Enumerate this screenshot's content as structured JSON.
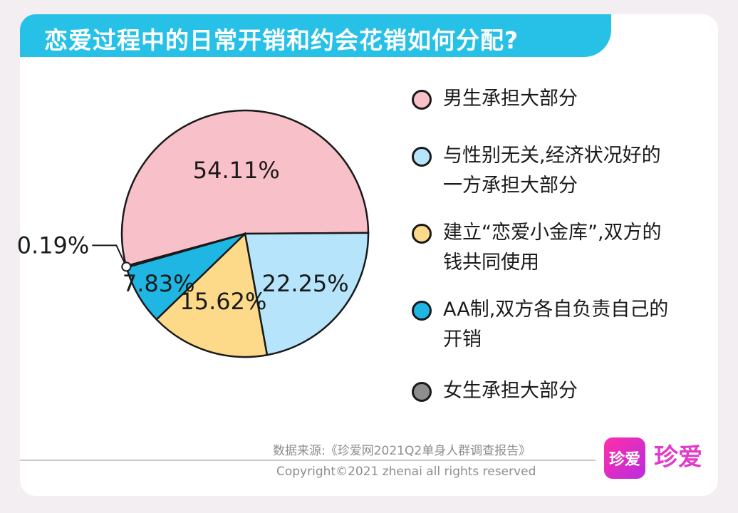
{
  "title": "恋爱过程中的日常开销和约会花销如何分配?",
  "chart_data": {
    "type": "pie",
    "slices": [
      {
        "label": "男生承担大部分",
        "value": 54.11,
        "display": "54.11%",
        "color": "#f8c0c8"
      },
      {
        "label": "与性别无关,经济状况好的一方承担大部分",
        "value": 22.25,
        "display": "22.25%",
        "color": "#b5e4fb"
      },
      {
        "label": "建立“恋爱小金库”,双方的钱共同使用",
        "value": 15.62,
        "display": "15.62%",
        "color": "#fcda8a"
      },
      {
        "label": "AA制,双方各自负责自己的开销",
        "value": 7.83,
        "display": "7.83%",
        "color": "#1fb6e3"
      },
      {
        "label": "女生承担大部分",
        "value": 0.19,
        "display": "0.19%",
        "color": "#8e8e8e"
      }
    ]
  },
  "legend": {
    "items": [
      {
        "text": "男生承担大部分",
        "color": "#f8c0c8"
      },
      {
        "text": "与性别无关,经济状况好的一方承担大部分",
        "color": "#b5e4fb"
      },
      {
        "text": "建立“恋爱小金库”,双方的钱共同使用",
        "color": "#fcda8a"
      },
      {
        "text": "AA制,双方各自负责自己的开销",
        "color": "#1fb6e3"
      },
      {
        "text": "女生承担大部分",
        "color": "#8e8e8e"
      }
    ]
  },
  "footer": {
    "source": "数据来源:《珍爱网2021Q2单身人群调查报告》",
    "copyright": "Copyright©2021 zhenai all rights reserved"
  },
  "logo": {
    "box_text": "珍爱",
    "brand_text": "珍爱"
  }
}
